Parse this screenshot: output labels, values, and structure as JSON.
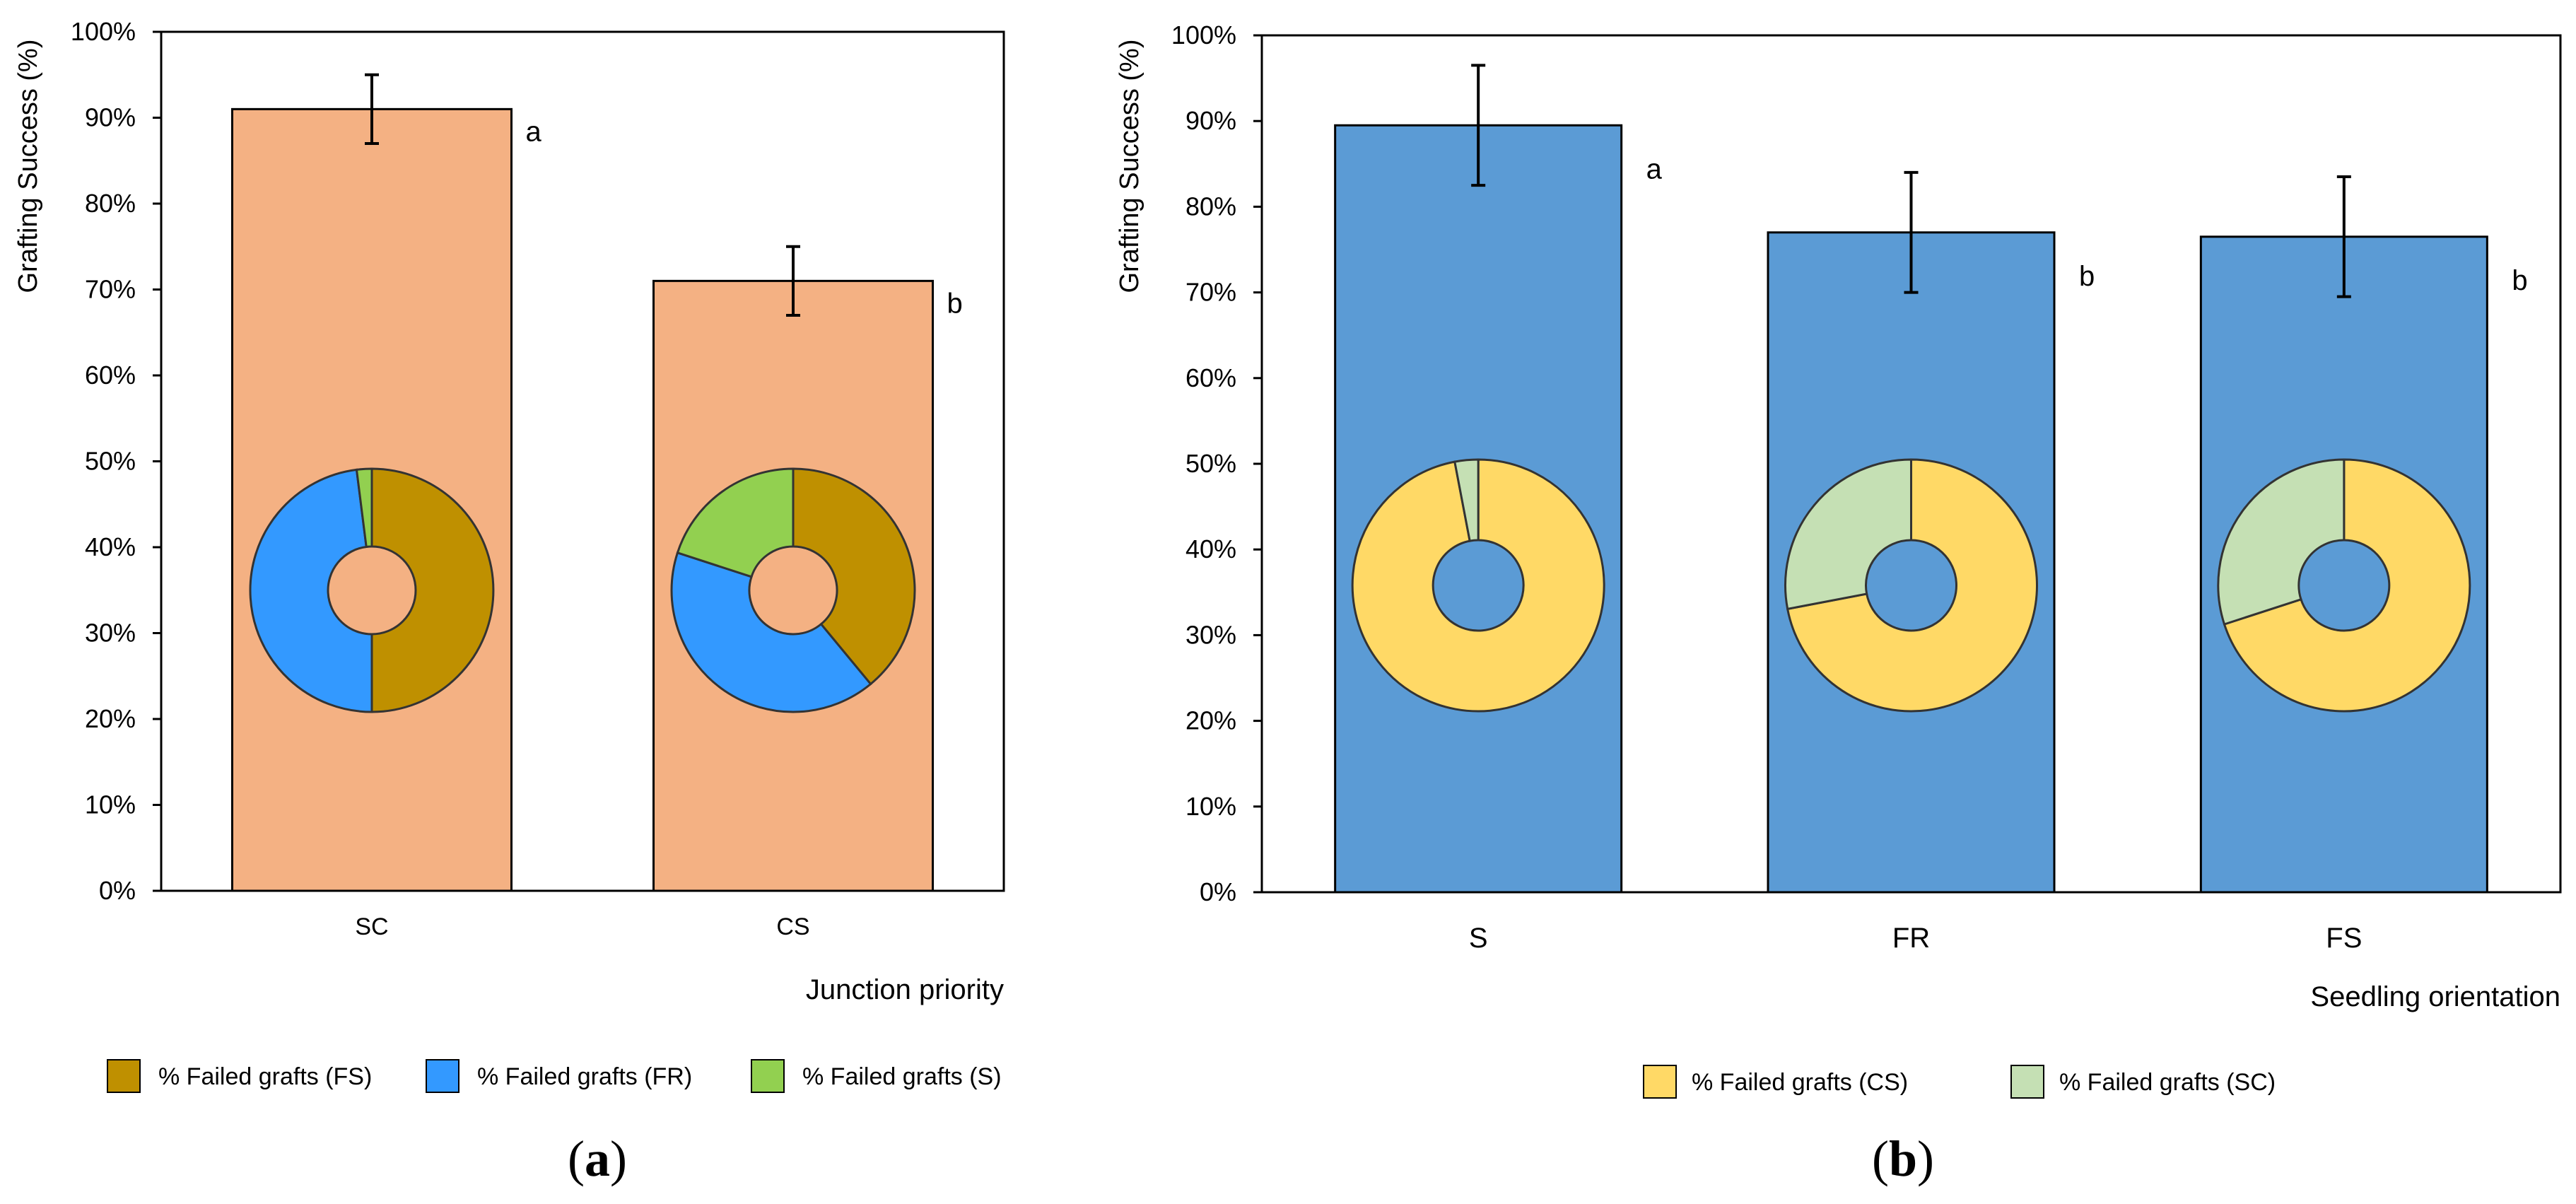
{
  "chart_data": [
    {
      "type": "bar",
      "panel_label": "a",
      "title": "",
      "xlabel": "Junction priority",
      "ylabel": "Grafting Success (%)",
      "ylim": [
        0,
        100
      ],
      "yticks": [
        "0%",
        "10%",
        "20%",
        "30%",
        "40%",
        "50%",
        "60%",
        "70%",
        "80%",
        "90%",
        "100%"
      ],
      "bar_color": "#F4B183",
      "categories": [
        "SC",
        "CS"
      ],
      "values": [
        91,
        71
      ],
      "errors": [
        4,
        4
      ],
      "significance": [
        "a",
        "b"
      ],
      "donut_legend": [
        {
          "label": "% Failed grafts (FS)",
          "color": "#BF9000"
        },
        {
          "label": "% Failed grafts (FR)",
          "color": "#3399FF"
        },
        {
          "label": "% Failed grafts (S)",
          "color": "#92D050"
        }
      ],
      "donuts": [
        {
          "category": "SC",
          "slices": [
            50,
            48,
            2
          ]
        },
        {
          "category": "CS",
          "slices": [
            39,
            41,
            20
          ]
        }
      ]
    },
    {
      "type": "bar",
      "panel_label": "b",
      "title": "",
      "xlabel": "Seedling orientation",
      "ylabel": "Grafting Success (%)",
      "ylim": [
        0,
        100
      ],
      "yticks": [
        "0%",
        "10%",
        "20%",
        "30%",
        "40%",
        "50%",
        "60%",
        "70%",
        "80%",
        "90%",
        "100%"
      ],
      "bar_color": "#5B9BD5",
      "categories": [
        "S",
        "FR",
        "FS"
      ],
      "values": [
        89.5,
        77,
        76.5
      ],
      "errors": [
        7,
        7,
        7
      ],
      "significance": [
        "a",
        "b",
        "b"
      ],
      "donut_legend": [
        {
          "label": "% Failed grafts (CS)",
          "color": "#FFD966"
        },
        {
          "label": "% Failed grafts (SC)",
          "color": "#C5E0B4"
        }
      ],
      "donuts": [
        {
          "category": "S",
          "slices": [
            97,
            3
          ]
        },
        {
          "category": "FR",
          "slices": [
            72,
            28
          ]
        },
        {
          "category": "FS",
          "slices": [
            70,
            30
          ]
        }
      ]
    }
  ]
}
